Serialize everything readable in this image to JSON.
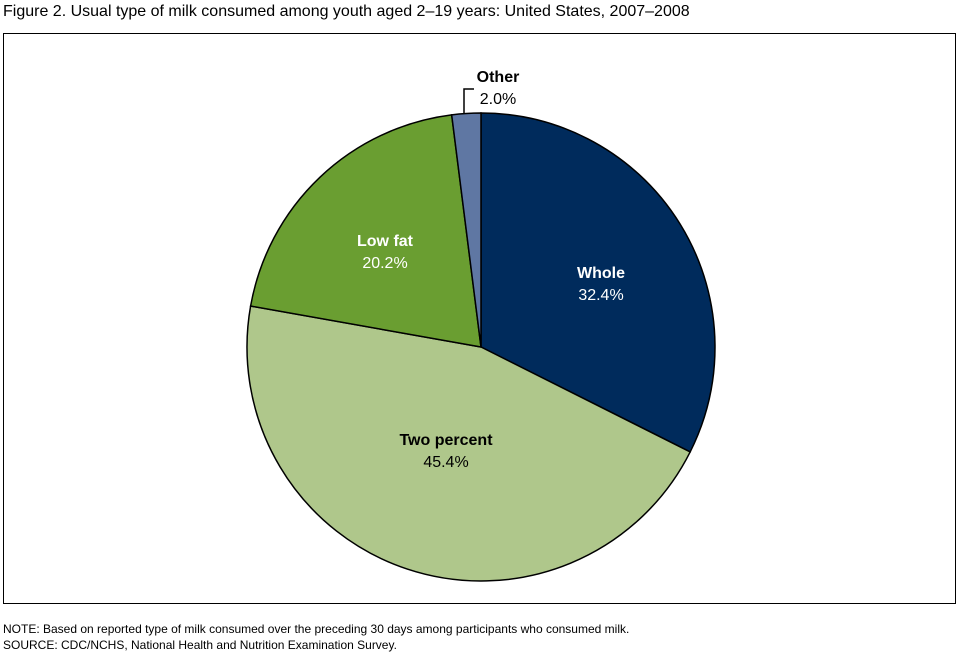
{
  "chart_data": {
    "type": "pie",
    "title": "Figure 2. Usual type of milk consumed among youth aged 2–19 years: United States, 2007–2008",
    "start": "top",
    "direction": "clockwise",
    "slices": [
      {
        "label": "Whole",
        "value": 32.4,
        "value_label": "32.4%",
        "color": "#002B5C",
        "text_color": "#ffffff"
      },
      {
        "label": "Two percent",
        "value": 45.4,
        "value_label": "45.4%",
        "color": "#AFC78B",
        "text_color": "#000000"
      },
      {
        "label": "Low fat",
        "value": 20.2,
        "value_label": "20.2%",
        "color": "#6A9E31",
        "text_color": "#ffffff"
      },
      {
        "label": "Other",
        "value": 2.0,
        "value_label": "2.0%",
        "color": "#5F77A3",
        "text_color": "#000000"
      }
    ]
  },
  "notes": {
    "note": "NOTE: Based on reported type of milk consumed over the preceding 30 days among participants who consumed milk.",
    "source": "SOURCE: CDC/NCHS, National Health and Nutrition Examination Survey."
  }
}
